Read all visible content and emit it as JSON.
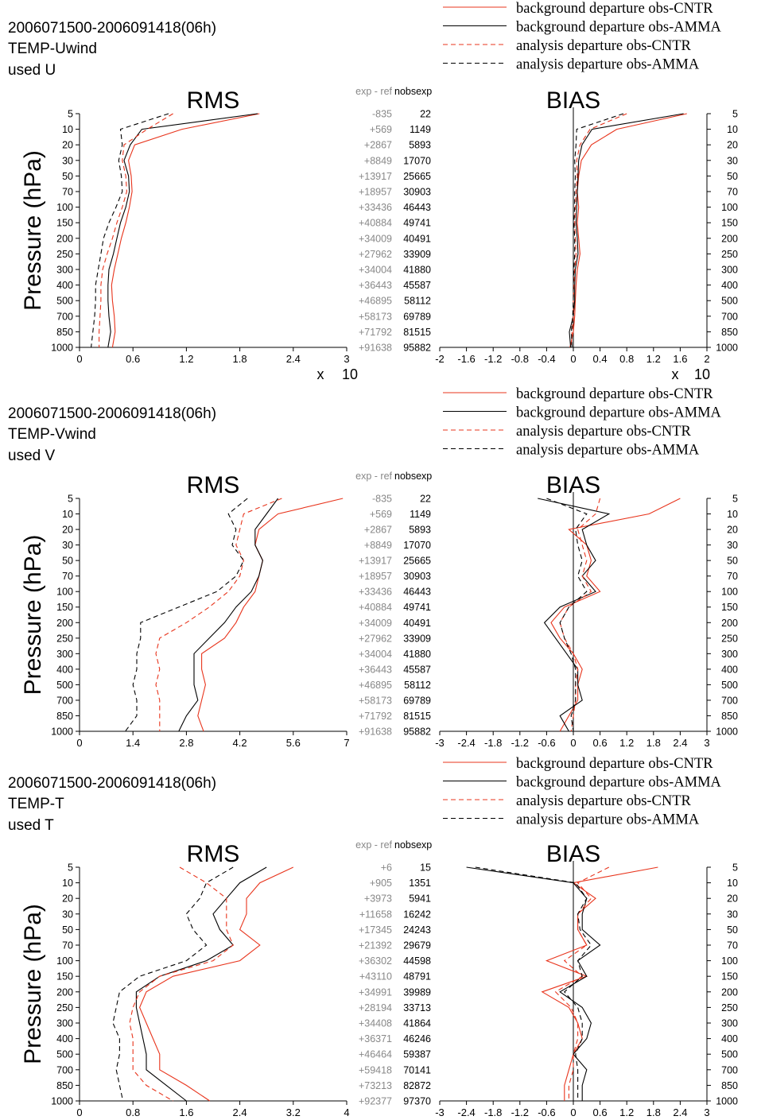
{
  "colors": {
    "cntr": "#e8341c",
    "amma": "#000000",
    "grey": "#888888"
  },
  "common": {
    "pressure_levels": [
      "5",
      "10",
      "20",
      "30",
      "50",
      "70",
      "100",
      "150",
      "200",
      "250",
      "300",
      "400",
      "500",
      "700",
      "850",
      "1000"
    ],
    "ylabel": "Pressure (hPa)",
    "rms_title": "RMS",
    "bias_title": "BIAS",
    "col_exp_ref": "exp - ref",
    "col_nobs": "nobsexp",
    "legend": [
      "background departure obs-CNTR",
      "background departure obs-AMMA",
      "analysis departure obs-CNTR",
      "analysis departure obs-AMMA"
    ]
  },
  "chart_data": [
    {
      "type": "line",
      "period": "2006071500-2006091418(06h)",
      "variable": "TEMP-Uwind",
      "used": "used U",
      "scale_label": "x",
      "scale_value": "10",
      "exp_ref": [
        "-835",
        "+569",
        "+2867",
        "+8849",
        "+13917",
        "+18957",
        "+33436",
        "+40884",
        "+34009",
        "+27962",
        "+34004",
        "+36443",
        "+46895",
        "+58173",
        "+71792",
        "+91638"
      ],
      "nobs": [
        "22",
        "1149",
        "5893",
        "17070",
        "25665",
        "30903",
        "46443",
        "49741",
        "40491",
        "33909",
        "41880",
        "45587",
        "58112",
        "69789",
        "81515",
        "95882"
      ],
      "rms": {
        "xlim": [
          0,
          3
        ],
        "xticks": [
          0,
          0.6,
          1.2,
          1.8,
          2.4,
          3
        ],
        "xticklabels": [
          "0",
          "0.6",
          "1.2",
          "1.8",
          "2.4",
          "3"
        ],
        "series": [
          {
            "name": "background departure obs-CNTR",
            "values": [
              2.02,
              1.15,
              0.62,
              0.55,
              0.58,
              0.59,
              0.56,
              0.52,
              0.47,
              0.43,
              0.39,
              0.36,
              0.37,
              0.39,
              0.4,
              0.37
            ]
          },
          {
            "name": "background departure obs-AMMA",
            "values": [
              2.0,
              0.7,
              0.57,
              0.5,
              0.55,
              0.56,
              0.52,
              0.46,
              0.42,
              0.38,
              0.33,
              0.32,
              0.32,
              0.33,
              0.35,
              0.32
            ]
          },
          {
            "name": "analysis departure obs-CNTR",
            "values": [
              1.05,
              0.76,
              0.5,
              0.48,
              0.52,
              0.53,
              0.48,
              0.42,
              0.37,
              0.31,
              0.26,
              0.24,
              0.24,
              0.23,
              0.22,
              0.22
            ]
          },
          {
            "name": "analysis departure obs-AMMA",
            "values": [
              1.0,
              0.46,
              0.48,
              0.44,
              0.47,
              0.48,
              0.41,
              0.33,
              0.27,
              0.24,
              0.21,
              0.18,
              0.18,
              0.17,
              0.15,
              0.13
            ]
          }
        ]
      },
      "bias": {
        "xlim": [
          -2,
          2
        ],
        "xticks": [
          -2,
          -1.6,
          -1.2,
          -0.8,
          -0.4,
          0,
          0.4,
          0.8,
          1.2,
          1.6,
          2
        ],
        "xticklabels": [
          "-2",
          "-1.6",
          "-1.2",
          "-0.8",
          "-0.4",
          "0",
          "0.4",
          "0.8",
          "1.2",
          "1.6",
          "2"
        ],
        "series": [
          {
            "name": "background departure obs-CNTR",
            "values": [
              1.7,
              0.65,
              0.27,
              0.12,
              0.08,
              0.06,
              0.08,
              0.06,
              0.08,
              0.1,
              0.06,
              0.04,
              0.03,
              0.02,
              0.0,
              -0.05
            ]
          },
          {
            "name": "background departure obs-AMMA",
            "values": [
              1.65,
              0.28,
              0.13,
              0.08,
              0.07,
              0.06,
              0.05,
              0.04,
              0.06,
              0.07,
              0.03,
              0.02,
              0.02,
              0.0,
              -0.06,
              -0.04
            ]
          },
          {
            "name": "analysis departure obs-CNTR",
            "values": [
              0.8,
              0.25,
              0.1,
              0.05,
              0.06,
              0.04,
              0.03,
              0.02,
              0.03,
              0.04,
              0.02,
              0.01,
              0.0,
              0.0,
              -0.02,
              -0.03
            ]
          },
          {
            "name": "analysis departure obs-AMMA",
            "values": [
              0.75,
              0.05,
              0.04,
              0.02,
              0.03,
              0.02,
              0.02,
              0.01,
              0.02,
              0.02,
              0.01,
              0.0,
              0.0,
              -0.01,
              -0.03,
              -0.02
            ]
          }
        ]
      }
    },
    {
      "type": "line",
      "period": "2006071500-2006091418(06h)",
      "variable": "TEMP-Vwind",
      "used": "used V",
      "scale_label": "",
      "scale_value": "",
      "exp_ref": [
        "-835",
        "+569",
        "+2867",
        "+8849",
        "+13917",
        "+18957",
        "+33436",
        "+40884",
        "+34009",
        "+27962",
        "+34004",
        "+36443",
        "+46895",
        "+58173",
        "+71792",
        "+91638"
      ],
      "nobs": [
        "22",
        "1149",
        "5893",
        "17070",
        "25665",
        "30903",
        "46443",
        "49741",
        "40491",
        "33909",
        "41880",
        "45587",
        "58112",
        "69789",
        "81515",
        "95882"
      ],
      "rms": {
        "xlim": [
          0,
          7
        ],
        "xticks": [
          0,
          1.4,
          2.8,
          4.2,
          5.6,
          7
        ],
        "xticklabels": [
          "0",
          "1.4",
          "2.8",
          "4.2",
          "5.6",
          "7"
        ],
        "series": [
          {
            "name": "background departure obs-CNTR",
            "values": [
              6.9,
              5.2,
              4.7,
              4.6,
              4.8,
              4.7,
              4.6,
              4.3,
              4.1,
              3.8,
              3.2,
              3.2,
              3.3,
              3.2,
              3.1,
              3.25
            ]
          },
          {
            "name": "background departure obs-AMMA",
            "values": [
              5.2,
              4.9,
              4.6,
              4.6,
              4.8,
              4.7,
              4.5,
              4.1,
              3.8,
              3.4,
              3.0,
              3.0,
              3.0,
              3.1,
              2.8,
              2.6
            ]
          },
          {
            "name": "analysis departure obs-CNTR",
            "values": [
              5.3,
              4.3,
              4.2,
              4.1,
              4.3,
              4.2,
              3.9,
              3.4,
              2.8,
              2.1,
              2.0,
              2.1,
              2.0,
              2.1,
              2.1,
              2.1
            ]
          },
          {
            "name": "analysis departure obs-AMMA",
            "values": [
              4.4,
              3.9,
              4.1,
              4.0,
              4.3,
              4.1,
              3.6,
              2.6,
              1.6,
              1.6,
              1.5,
              1.5,
              1.4,
              1.5,
              1.5,
              1.2
            ]
          }
        ]
      },
      "bias": {
        "xlim": [
          -3,
          3
        ],
        "xticks": [
          -3,
          -2.4,
          -1.8,
          -1.2,
          -0.6,
          0,
          0.6,
          1.2,
          1.8,
          2.4,
          3
        ],
        "xticklabels": [
          "-3",
          "-2.4",
          "-1.8",
          "-1.2",
          "-0.6",
          "0",
          "0.6",
          "1.2",
          "1.8",
          "2.4",
          "3"
        ],
        "series": [
          {
            "name": "background departure obs-CNTR",
            "values": [
              2.4,
              1.7,
              -0.1,
              0.3,
              0.4,
              0.3,
              0.6,
              -0.2,
              -0.5,
              -0.3,
              0.0,
              0.2,
              0.1,
              0.1,
              -0.1,
              -0.3
            ]
          },
          {
            "name": "background departure obs-AMMA",
            "values": [
              -0.8,
              0.8,
              0.2,
              0.3,
              0.5,
              0.2,
              0.5,
              -0.3,
              -0.65,
              -0.4,
              -0.15,
              0.1,
              0.1,
              0.2,
              -0.3,
              -0.1
            ]
          },
          {
            "name": "analysis departure obs-CNTR",
            "values": [
              0.6,
              0.5,
              0.1,
              0.2,
              0.3,
              0.2,
              0.4,
              -0.1,
              -0.3,
              -0.2,
              0.0,
              0.1,
              0.05,
              0.05,
              0.0,
              -0.05
            ]
          },
          {
            "name": "analysis departure obs-AMMA",
            "values": [
              -0.6,
              0.3,
              0.05,
              0.1,
              0.2,
              0.1,
              0.3,
              -0.1,
              -0.3,
              -0.2,
              -0.05,
              0.05,
              0.05,
              0.05,
              -0.05,
              0.0
            ]
          }
        ]
      }
    },
    {
      "type": "line",
      "period": "2006071500-2006091418(06h)",
      "variable": "TEMP-T",
      "used": "used T",
      "scale_label": "",
      "scale_value": "",
      "exp_ref": [
        "+6",
        "+905",
        "+3973",
        "+11658",
        "+17345",
        "+21392",
        "+36302",
        "+43110",
        "+34991",
        "+28194",
        "+34408",
        "+36371",
        "+46464",
        "+59418",
        "+73213",
        "+92377"
      ],
      "nobs": [
        "15",
        "1351",
        "5941",
        "16242",
        "24243",
        "29679",
        "44598",
        "48791",
        "39989",
        "33713",
        "41864",
        "46246",
        "59387",
        "70141",
        "82872",
        "97370"
      ],
      "rms": {
        "xlim": [
          0,
          4
        ],
        "xticks": [
          0,
          0.8,
          1.6,
          2.4,
          3.2,
          4
        ],
        "xticklabels": [
          "0",
          "0.8",
          "1.6",
          "2.4",
          "3.2",
          "4"
        ],
        "series": [
          {
            "name": "background departure obs-CNTR",
            "values": [
              3.2,
              2.7,
              2.5,
              2.5,
              2.4,
              2.7,
              2.4,
              1.4,
              1.0,
              0.9,
              1.0,
              1.1,
              1.2,
              1.2,
              1.6,
              1.95
            ]
          },
          {
            "name": "background departure obs-AMMA",
            "values": [
              2.8,
              2.4,
              2.2,
              2.0,
              2.1,
              2.3,
              1.9,
              1.2,
              0.85,
              0.85,
              0.9,
              0.95,
              1.0,
              1.0,
              1.3,
              1.6
            ]
          },
          {
            "name": "analysis departure obs-CNTR",
            "values": [
              1.5,
              1.9,
              2.2,
              2.2,
              2.2,
              2.3,
              2.0,
              1.2,
              0.9,
              0.8,
              0.75,
              0.8,
              0.8,
              0.8,
              1.0,
              1.4
            ]
          },
          {
            "name": "analysis departure obs-AMMA",
            "values": [
              2.3,
              1.9,
              1.8,
              1.6,
              1.7,
              1.9,
              1.6,
              0.9,
              0.6,
              0.55,
              0.5,
              0.6,
              0.6,
              0.55,
              0.6,
              0.65
            ]
          }
        ]
      },
      "bias": {
        "xlim": [
          -3,
          3
        ],
        "xticks": [
          -3,
          -2.4,
          -1.8,
          -1.2,
          -0.6,
          0,
          0.6,
          1.2,
          1.8,
          2.4,
          3
        ],
        "xticklabels": [
          "-3",
          "-2.4",
          "-1.8",
          "-1.2",
          "-0.6",
          "0",
          "0.6",
          "1.2",
          "1.8",
          "2.4",
          "3"
        ],
        "series": [
          {
            "name": "background departure obs-CNTR",
            "values": [
              1.9,
              0.0,
              0.5,
              0.1,
              0.1,
              0.3,
              -0.6,
              0.3,
              -0.7,
              -0.1,
              0.1,
              0.2,
              0.0,
              -0.1,
              -0.2,
              -0.2
            ]
          },
          {
            "name": "background departure obs-AMMA",
            "values": [
              -2.4,
              0.0,
              0.3,
              0.2,
              0.2,
              0.6,
              0.1,
              0.3,
              -0.3,
              0.2,
              0.4,
              0.3,
              0.0,
              0.3,
              0.2,
              0.2
            ]
          },
          {
            "name": "analysis departure obs-CNTR",
            "values": [
              0.8,
              0.1,
              0.4,
              0.1,
              0.1,
              0.3,
              -0.2,
              0.2,
              -0.4,
              -0.05,
              0.1,
              0.1,
              0.0,
              0.0,
              -0.1,
              -0.1
            ]
          },
          {
            "name": "analysis departure obs-AMMA",
            "values": [
              -2.2,
              0.05,
              0.3,
              0.1,
              0.15,
              0.4,
              0.1,
              0.2,
              -0.2,
              0.1,
              0.2,
              0.2,
              0.05,
              0.1,
              0.1,
              0.1
            ]
          }
        ]
      }
    }
  ]
}
